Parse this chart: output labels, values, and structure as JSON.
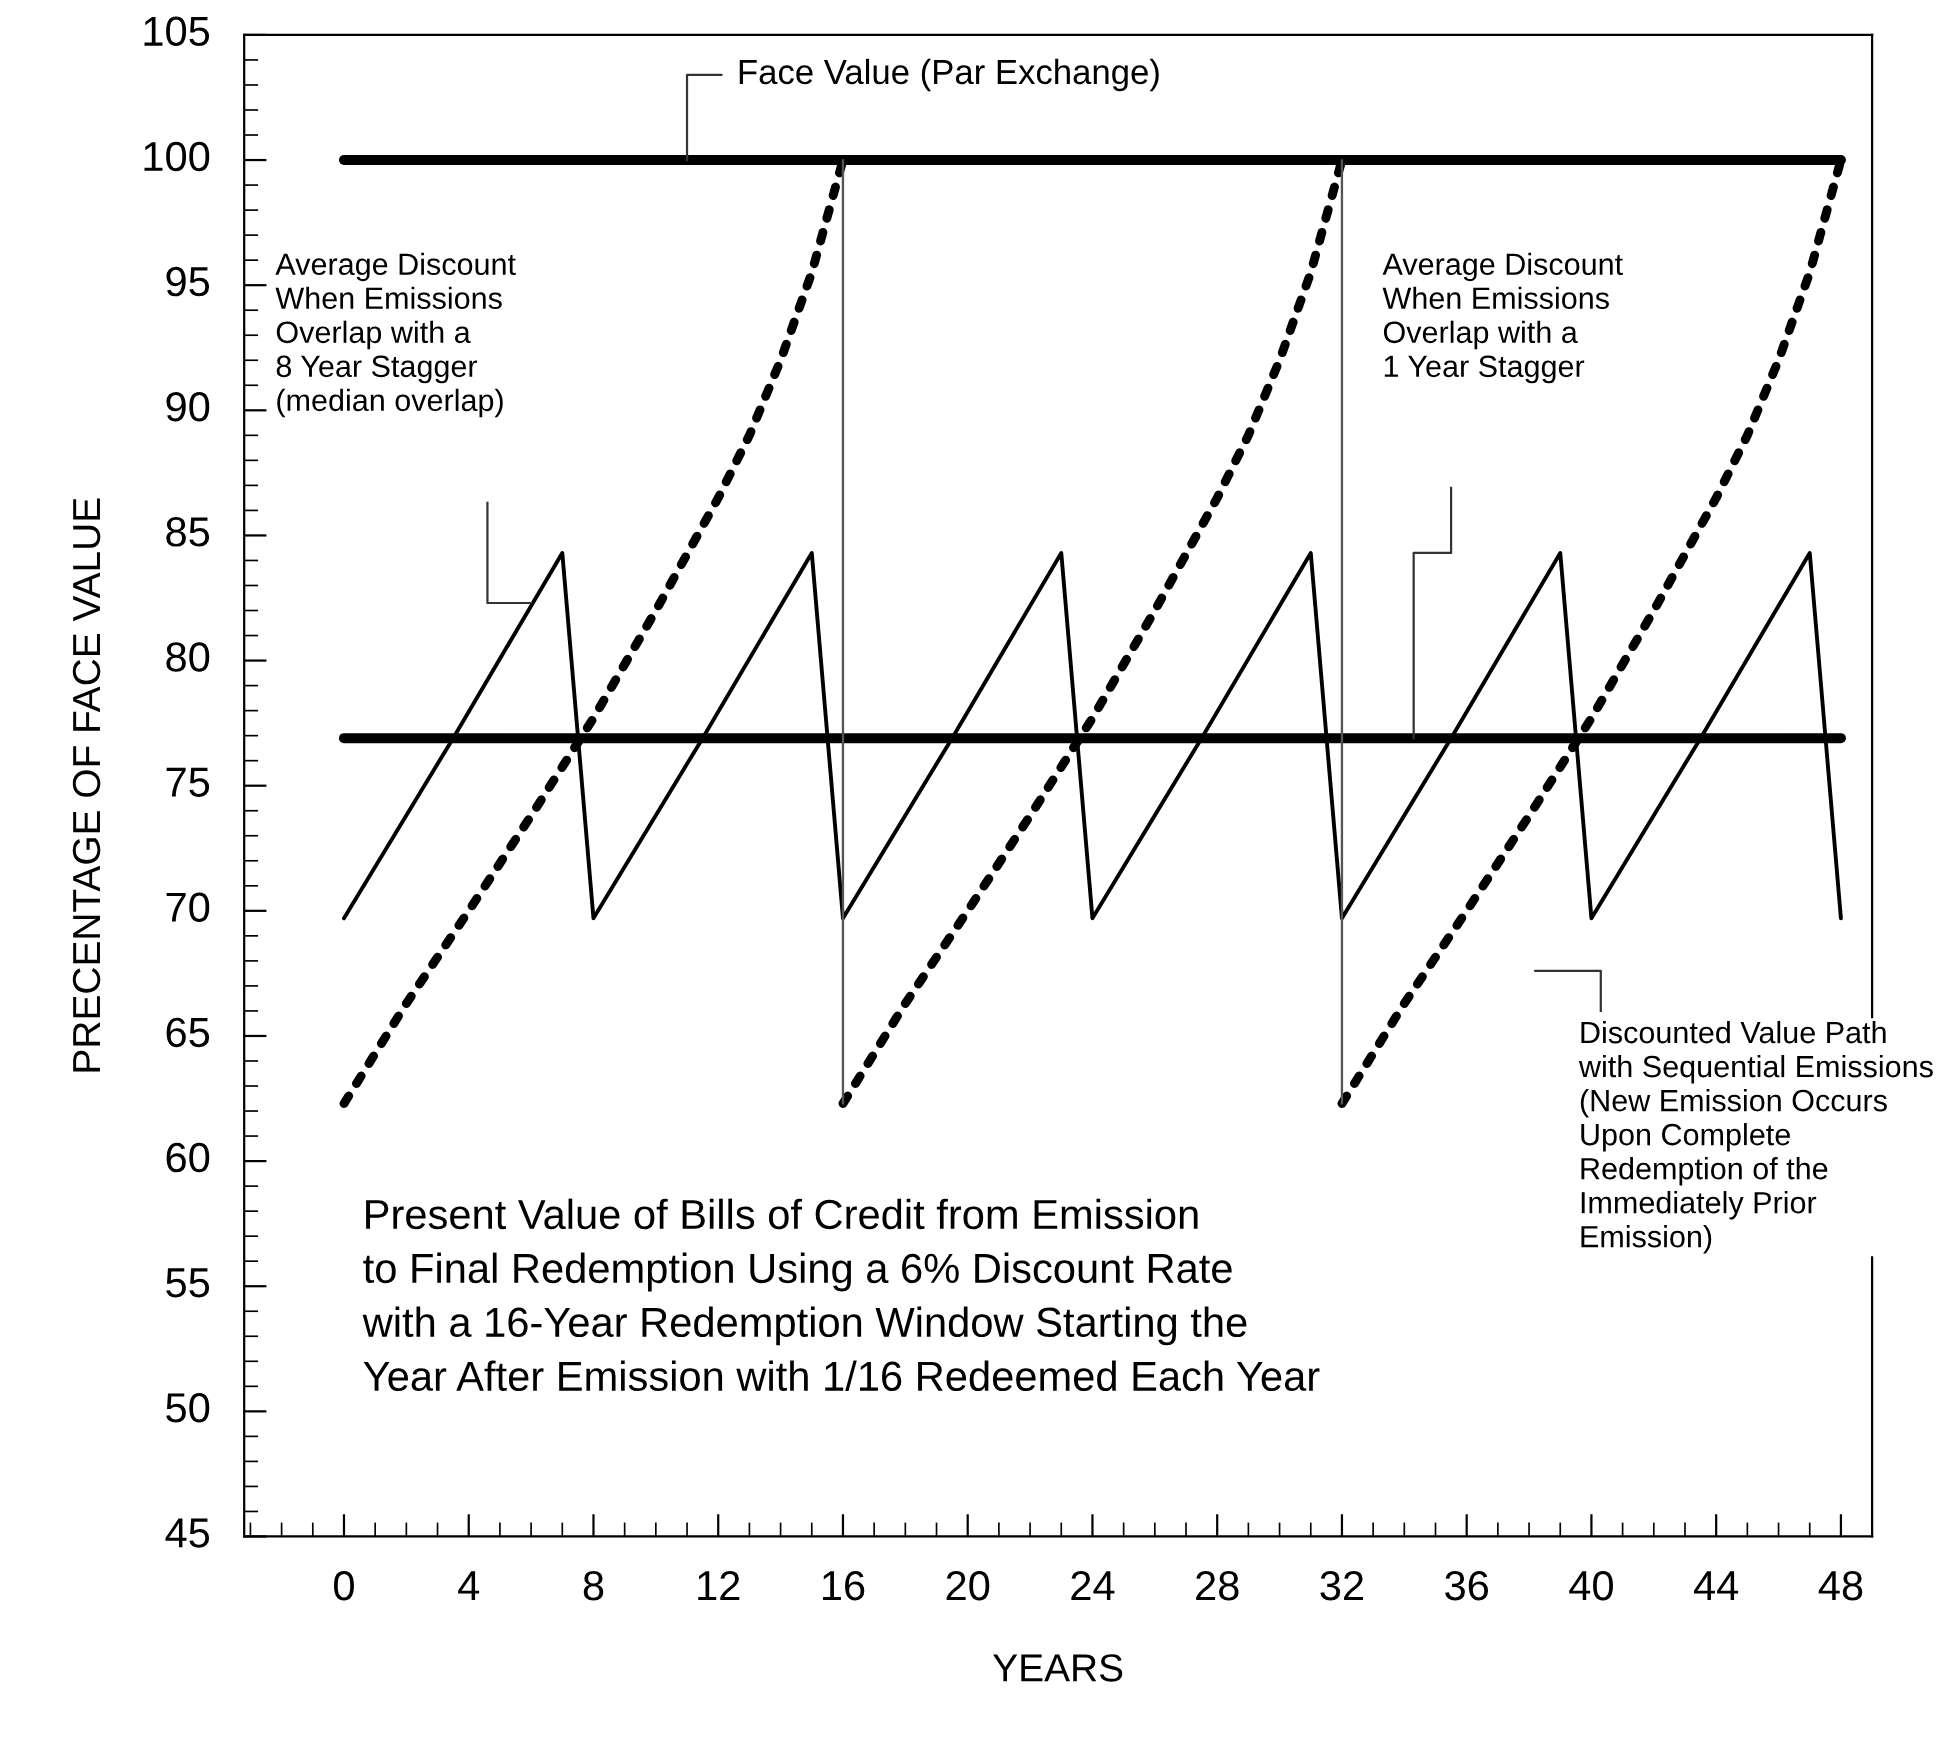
{
  "chart_data": {
    "type": "line",
    "xlabel": "YEARS",
    "ylabel": "PRECENTAGE OF FACE VALUE",
    "xlim": [
      -3.2,
      49
    ],
    "xticks": [
      0,
      4,
      8,
      12,
      16,
      20,
      24,
      28,
      32,
      36,
      40,
      44,
      48
    ],
    "ylim": [
      45,
      105
    ],
    "yticks": [
      45,
      50,
      55,
      60,
      65,
      70,
      75,
      80,
      85,
      90,
      95,
      100,
      105
    ],
    "grid": false,
    "marker": "none",
    "series": [
      {
        "color": "#000000",
        "line_style": "solid",
        "x": [
          0,
          48
        ],
        "values": [
          100,
          100
        ]
      },
      {
        "color": "#000000",
        "line_style": "solid",
        "x": [
          0,
          48
        ],
        "values": [
          76.9,
          76.9
        ]
      },
      {
        "color": "#000000",
        "line_style": "solid",
        "x": [
          0,
          3.5,
          7,
          8,
          11.5,
          15,
          16,
          19.5,
          23,
          24,
          27.5,
          31,
          32,
          35.5,
          39,
          40,
          43.5,
          47,
          48
        ],
        "values": [
          69.7,
          76.9,
          84.3,
          69.7,
          76.9,
          84.3,
          69.7,
          76.9,
          84.3,
          69.7,
          76.9,
          84.3,
          69.7,
          76.9,
          84.3,
          69.7,
          76.9,
          84.3,
          69.7
        ]
      },
      {
        "color": "#000000",
        "line_style": "dotted",
        "x": [
          0,
          2,
          4,
          6,
          8,
          10,
          12,
          13,
          14,
          15,
          16
        ],
        "values": [
          62.3,
          66.3,
          70.0,
          73.8,
          77.7,
          82.0,
          86.5,
          89.0,
          92.0,
          95.5,
          100
        ]
      },
      {
        "color": "#000000",
        "line_style": "dotted",
        "x": [
          16,
          18,
          20,
          22,
          24,
          26,
          28,
          29,
          30,
          31,
          32
        ],
        "values": [
          62.3,
          66.3,
          70.0,
          73.8,
          77.7,
          82.0,
          86.5,
          89.0,
          92.0,
          95.5,
          100
        ]
      },
      {
        "color": "#000000",
        "line_style": "dotted",
        "x": [
          32,
          34,
          36,
          38,
          40,
          42,
          44,
          45,
          46,
          47,
          48
        ],
        "values": [
          62.3,
          66.3,
          70.0,
          73.8,
          77.7,
          82.0,
          86.5,
          89.0,
          92.0,
          95.5,
          100
        ]
      },
      {
        "color": "#555555",
        "line_style": "solid",
        "x": [
          16,
          16
        ],
        "values": [
          62.3,
          100
        ]
      },
      {
        "color": "#555555",
        "line_style": "solid",
        "x": [
          32,
          32
        ],
        "values": [
          62.3,
          100
        ]
      }
    ],
    "annotations": [
      {
        "text": "Face Value (Par Exchange)",
        "x": 11,
        "y": 100
      },
      "Average Discount\nWhen Emissions\nOverlap with a\n8 Year Stagger\n(median overlap)",
      "Average Discount\nWhen Emissions\nOverlap with a\n1 Year Stagger",
      "Discounted Value Path\nwith Sequential Emissions\n(New Emission Occurs\nUpon Complete\nRedemption of the\nImmediately Prior\nEmission)",
      "Present Value of Bills of Credit from Emission\nto Final Redemption Using a 6% Discount Rate\nwith a 16-Year Redemption Window Starting the\nYear After Emission with 1/16 Redeemed Each Year"
    ]
  }
}
